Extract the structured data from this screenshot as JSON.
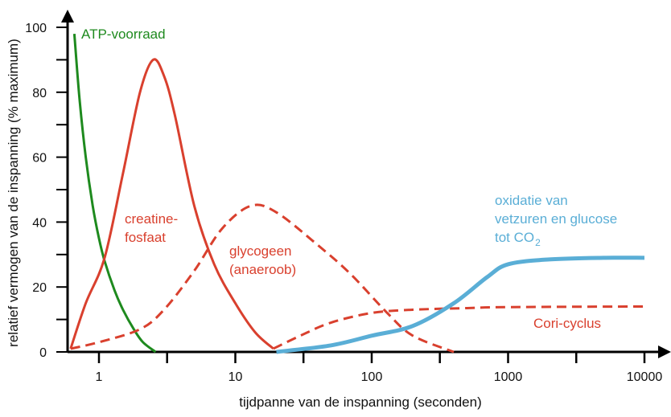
{
  "chart_data": {
    "type": "line",
    "title": "",
    "xlabel": "tijdpanne van de inspanning (seconden)",
    "ylabel": "relatief vermogen van de inspanning (% maximum)",
    "xscale": "log",
    "xlim": [
      0.59,
      12000
    ],
    "ylim": [
      0,
      100
    ],
    "xticks": [
      {
        "v": 1,
        "label": "1"
      },
      {
        "v": 10,
        "label": "10"
      },
      {
        "v": 100,
        "label": "100"
      },
      {
        "v": 1000,
        "label": "1000"
      },
      {
        "v": 10000,
        "label": "10000"
      }
    ],
    "xminor": [
      3.16,
      31.6,
      316,
      3162
    ],
    "yticks": [
      {
        "v": 0,
        "label": "0"
      },
      {
        "v": 20,
        "label": "20"
      },
      {
        "v": 40,
        "label": "40"
      },
      {
        "v": 60,
        "label": "60"
      },
      {
        "v": 80,
        "label": "80"
      },
      {
        "v": 100,
        "label": "100"
      }
    ],
    "yminor": [
      10,
      30,
      50,
      70,
      90
    ],
    "series": [
      {
        "name": "ATP-voorraad",
        "label_lines": [
          "ATP-voorraad"
        ],
        "color": "#1e8a1e",
        "dash": false,
        "x": [
          0.66,
          0.72,
          0.8,
          0.9,
          1.0,
          1.1,
          1.3,
          1.5,
          1.8,
          2.1,
          2.6
        ],
        "y": [
          98,
          78,
          60,
          45,
          35,
          28,
          19,
          13,
          7,
          3,
          0
        ]
      },
      {
        "name": "creatine-fosfaat",
        "label_lines": [
          "creatine-",
          "fosfaat"
        ],
        "color": "#d9402e",
        "dash": false,
        "x": [
          0.62,
          0.8,
          1.1,
          1.5,
          2.0,
          2.5,
          3.0,
          3.6,
          5,
          7,
          10,
          14,
          19
        ],
        "y": [
          1,
          15,
          29,
          55,
          80,
          90,
          85,
          73,
          45,
          27,
          15,
          6,
          1
        ]
      },
      {
        "name": "glycogeen (anaeroob)",
        "label_lines": [
          "glycogeen",
          "(anaeroob)"
        ],
        "color": "#d9402e",
        "dash": true,
        "x": [
          0.62,
          1,
          2,
          3,
          5,
          8,
          13,
          20,
          40,
          70,
          130,
          200,
          400
        ],
        "y": [
          1,
          3,
          7,
          13,
          25,
          38,
          45,
          43,
          33,
          24,
          12,
          5,
          0
        ]
      },
      {
        "name": "Cori-cyclus",
        "label_lines": [
          "Cori-cyclus"
        ],
        "color": "#d9402e",
        "dash": true,
        "x": [
          19,
          30,
          50,
          100,
          200,
          500,
          1000,
          10000
        ],
        "y": [
          1,
          5,
          9,
          12,
          13,
          13.5,
          13.8,
          14
        ]
      },
      {
        "name": "oxidatie van vetzuren en glucose tot CO2",
        "label_lines": [
          "oxidatie van",
          "vetzuren en glucose",
          "tot CO"
        ],
        "label_sub": "2",
        "color": "#5aaed6",
        "dash": false,
        "x": [
          20,
          50,
          100,
          200,
          400,
          700,
          1000,
          2000,
          5000,
          10000
        ],
        "y": [
          0,
          2,
          5,
          8,
          15,
          23,
          27,
          28.5,
          29,
          29
        ]
      }
    ]
  }
}
